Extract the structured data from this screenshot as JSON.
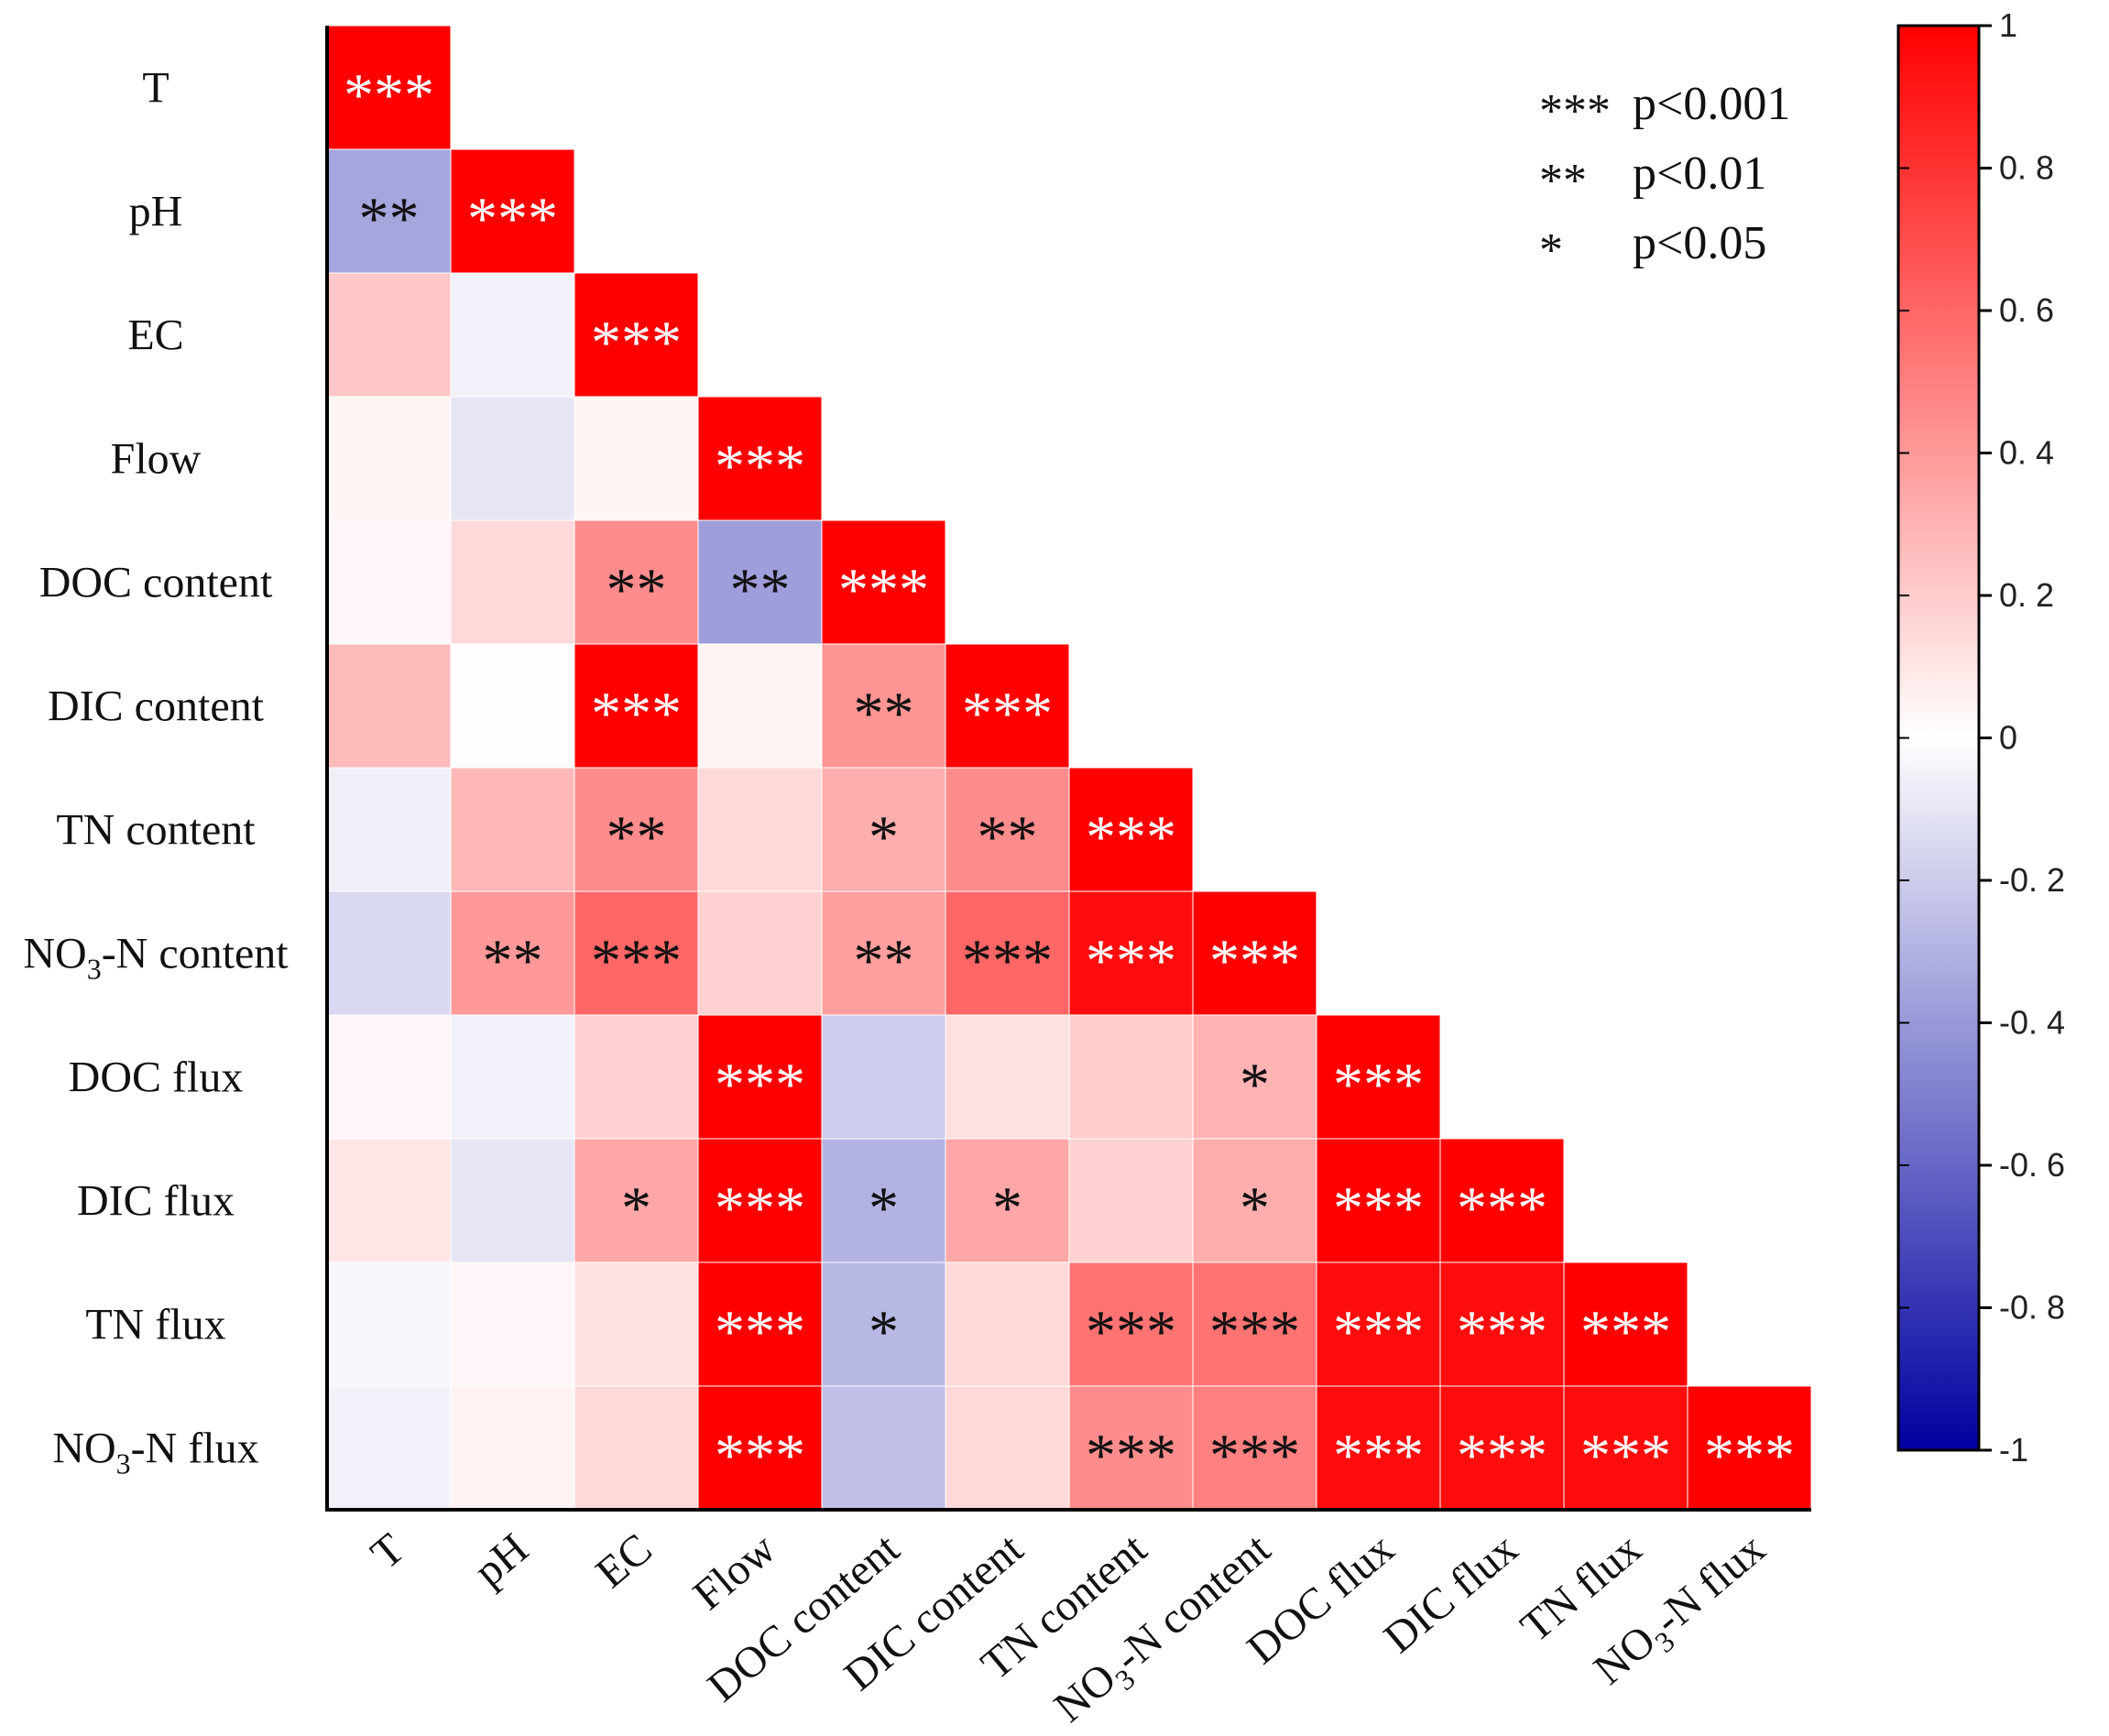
{
  "chart_data": {
    "type": "heatmap",
    "title": "",
    "variables": [
      "T",
      "pH",
      "EC",
      "Flow",
      "DOC content",
      "DIC content",
      "TN content",
      "NO3-N content",
      "DOC flux",
      "DIC flux",
      "TN flux",
      "NO3-N flux"
    ],
    "variable_labels": [
      {
        "main": "T",
        "sub": "",
        "rest": ""
      },
      {
        "main": "pH",
        "sub": "",
        "rest": ""
      },
      {
        "main": "EC",
        "sub": "",
        "rest": ""
      },
      {
        "main": "Flow",
        "sub": "",
        "rest": ""
      },
      {
        "main": "DOC content",
        "sub": "",
        "rest": ""
      },
      {
        "main": "DIC content",
        "sub": "",
        "rest": ""
      },
      {
        "main": "TN content",
        "sub": "",
        "rest": ""
      },
      {
        "main": "NO",
        "sub": "3",
        "rest": "-N content"
      },
      {
        "main": "DOC flux",
        "sub": "",
        "rest": ""
      },
      {
        "main": "DIC flux",
        "sub": "",
        "rest": ""
      },
      {
        "main": "TN flux",
        "sub": "",
        "rest": ""
      },
      {
        "main": "NO",
        "sub": "3",
        "rest": "-N flux"
      }
    ],
    "correlations": [
      [
        1.0
      ],
      [
        -0.35,
        1.0
      ],
      [
        0.22,
        -0.05,
        1.0
      ],
      [
        0.04,
        -0.1,
        0.04,
        1.0
      ],
      [
        0.03,
        0.15,
        0.45,
        -0.38,
        1.0
      ],
      [
        0.27,
        0.01,
        1.0,
        0.04,
        0.42,
        1.0
      ],
      [
        -0.06,
        0.28,
        0.45,
        0.15,
        0.32,
        0.45,
        1.0
      ],
      [
        -0.15,
        0.4,
        0.6,
        0.18,
        0.38,
        0.6,
        0.95,
        1.0
      ],
      [
        0.03,
        -0.05,
        0.18,
        1.0,
        -0.2,
        0.12,
        0.2,
        0.3,
        1.0
      ],
      [
        0.1,
        -0.1,
        0.35,
        1.0,
        -0.3,
        0.35,
        0.18,
        0.32,
        1.0,
        1.0
      ],
      [
        -0.03,
        0.03,
        0.12,
        1.0,
        -0.28,
        0.15,
        0.55,
        0.55,
        0.95,
        0.95,
        1.0
      ],
      [
        -0.05,
        0.05,
        0.15,
        1.0,
        -0.25,
        0.15,
        0.45,
        0.5,
        0.95,
        0.95,
        0.95,
        1.0
      ]
    ],
    "significance": [
      [
        "***"
      ],
      [
        "**",
        "***"
      ],
      [
        "",
        "",
        "***"
      ],
      [
        "",
        "",
        "",
        "***"
      ],
      [
        "",
        "",
        "**",
        "**",
        "***"
      ],
      [
        "",
        "",
        "***",
        "",
        "**",
        "***"
      ],
      [
        "",
        "",
        "**",
        "",
        "*",
        "**",
        "***"
      ],
      [
        "",
        "**",
        "***",
        "",
        "**",
        "***",
        "***",
        "***"
      ],
      [
        "",
        "",
        "",
        "***",
        "",
        "",
        "",
        "*",
        "***"
      ],
      [
        "",
        "",
        "*",
        "***",
        "*",
        "*",
        "",
        "*",
        "***",
        "***"
      ],
      [
        "",
        "",
        "",
        "***",
        "*",
        "",
        "***",
        "***",
        "***",
        "***",
        "***"
      ],
      [
        "",
        "",
        "",
        "***",
        "",
        "",
        "***",
        "***",
        "***",
        "***",
        "***",
        "***"
      ]
    ],
    "colorscale": {
      "min": -1,
      "max": 1,
      "colors": [
        "#0000a0",
        "#ffffff",
        "#ff0000"
      ],
      "ticks": [
        1,
        0.8,
        0.6,
        0.4,
        0.2,
        0,
        -0.2,
        -0.4,
        -0.6,
        -0.8,
        -1
      ],
      "tick_labels": [
        "1",
        "0. 8",
        "0. 6",
        "0. 4",
        "0. 2",
        "0",
        "-0. 2",
        "-0. 4",
        "-0. 6",
        "-0. 8",
        "-1"
      ]
    },
    "significance_legend": [
      {
        "stars": "***",
        "label": "p<0.001"
      },
      {
        "stars": "**",
        "label": "p<0.01"
      },
      {
        "stars": "*",
        "label": "p<0.05"
      }
    ]
  }
}
